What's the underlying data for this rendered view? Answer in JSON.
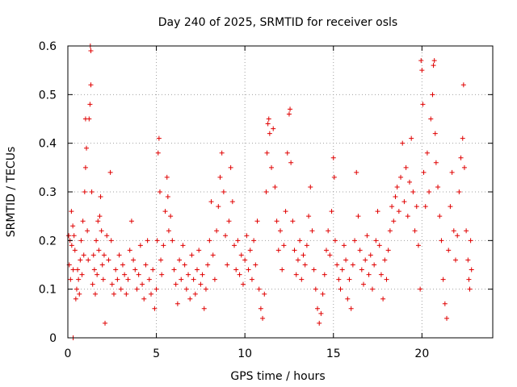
{
  "chart_data": {
    "type": "scatter",
    "title": "Day 240 of 2025, SRMTID for receiver osls",
    "xlabel": "GPS time / hours",
    "ylabel": "SRMTID / TECUs",
    "xlim": [
      0,
      24
    ],
    "ylim": [
      0,
      0.6
    ],
    "x_ticks": [
      0,
      5,
      10,
      15,
      20
    ],
    "x_tick_labels": [
      "0",
      "5",
      "10",
      "15",
      "20"
    ],
    "y_ticks": [
      0,
      0.1,
      0.2,
      0.3,
      0.4,
      0.5,
      0.6
    ],
    "y_tick_labels": [
      "0",
      "0.1",
      "0.2",
      "0.3",
      "0.4",
      "0.5",
      "0.6"
    ],
    "grid": true,
    "marker": "plus",
    "color": "#e00000",
    "series": [
      {
        "name": "SRMTID",
        "points": [
          [
            0.05,
            0.21
          ],
          [
            0.08,
            0.15
          ],
          [
            0.12,
            0.2
          ],
          [
            0.15,
            0.12
          ],
          [
            0.2,
            0.26
          ],
          [
            0.22,
            0.19
          ],
          [
            0.28,
            0.23
          ],
          [
            0.3,
            0.14
          ],
          [
            0.35,
            0.21
          ],
          [
            0.4,
            0.18
          ],
          [
            0.45,
            0.08
          ],
          [
            0.5,
            0.1
          ],
          [
            0.55,
            0.14
          ],
          [
            0.6,
            0.12
          ],
          [
            0.65,
            0.09
          ],
          [
            0.7,
            0.16
          ],
          [
            0.75,
            0.2
          ],
          [
            0.8,
            0.13
          ],
          [
            0.85,
            0.24
          ],
          [
            0.9,
            0.17
          ],
          [
            0.95,
            0.3
          ],
          [
            1.0,
            0.35
          ],
          [
            1.0,
            0.45
          ],
          [
            1.05,
            0.39
          ],
          [
            1.1,
            0.22
          ],
          [
            1.15,
            0.16
          ],
          [
            1.2,
            0.45
          ],
          [
            1.25,
            0.48
          ],
          [
            1.27,
            0.6
          ],
          [
            1.3,
            0.52
          ],
          [
            1.3,
            0.59
          ],
          [
            1.35,
            0.3
          ],
          [
            1.4,
            0.11
          ],
          [
            1.45,
            0.17
          ],
          [
            1.5,
            0.14
          ],
          [
            1.55,
            0.09
          ],
          [
            1.6,
            0.2
          ],
          [
            1.65,
            0.13
          ],
          [
            1.7,
            0.24
          ],
          [
            1.75,
            0.18
          ],
          [
            1.8,
            0.25
          ],
          [
            1.85,
            0.29
          ],
          [
            1.9,
            0.22
          ],
          [
            1.95,
            0.15
          ],
          [
            2.0,
            0.12
          ],
          [
            2.05,
            0.17
          ],
          [
            2.1,
            0.03
          ],
          [
            2.2,
            0.21
          ],
          [
            2.3,
            0.16
          ],
          [
            2.4,
            0.34
          ],
          [
            2.45,
            0.2
          ],
          [
            2.5,
            0.11
          ],
          [
            2.6,
            0.09
          ],
          [
            2.7,
            0.14
          ],
          [
            2.8,
            0.12
          ],
          [
            2.9,
            0.17
          ],
          [
            3.0,
            0.1
          ],
          [
            3.1,
            0.15
          ],
          [
            3.2,
            0.13
          ],
          [
            3.3,
            0.09
          ],
          [
            3.4,
            0.12
          ],
          [
            3.5,
            0.18
          ],
          [
            3.6,
            0.24
          ],
          [
            3.7,
            0.16
          ],
          [
            3.8,
            0.14
          ],
          [
            3.9,
            0.1
          ],
          [
            4.0,
            0.13
          ],
          [
            4.1,
            0.19
          ],
          [
            4.2,
            0.11
          ],
          [
            4.3,
            0.08
          ],
          [
            4.4,
            0.15
          ],
          [
            4.5,
            0.2
          ],
          [
            4.6,
            0.12
          ],
          [
            4.7,
            0.09
          ],
          [
            4.8,
            0.14
          ],
          [
            4.9,
            0.06
          ],
          [
            5.0,
            0.1
          ],
          [
            5.05,
            0.2
          ],
          [
            5.1,
            0.38
          ],
          [
            5.15,
            0.41
          ],
          [
            5.2,
            0.3
          ],
          [
            5.25,
            0.16
          ],
          [
            5.3,
            0.13
          ],
          [
            5.4,
            0.19
          ],
          [
            5.5,
            0.26
          ],
          [
            5.6,
            0.33
          ],
          [
            5.65,
            0.29
          ],
          [
            5.7,
            0.22
          ],
          [
            5.8,
            0.25
          ],
          [
            5.9,
            0.2
          ],
          [
            6.0,
            0.14
          ],
          [
            6.1,
            0.11
          ],
          [
            6.2,
            0.07
          ],
          [
            6.3,
            0.16
          ],
          [
            6.4,
            0.12
          ],
          [
            6.5,
            0.19
          ],
          [
            6.6,
            0.15
          ],
          [
            6.7,
            0.1
          ],
          [
            6.8,
            0.13
          ],
          [
            6.9,
            0.08
          ],
          [
            7.0,
            0.17
          ],
          [
            7.1,
            0.12
          ],
          [
            7.2,
            0.09
          ],
          [
            7.3,
            0.14
          ],
          [
            7.4,
            0.18
          ],
          [
            7.5,
            0.11
          ],
          [
            7.6,
            0.13
          ],
          [
            7.7,
            0.06
          ],
          [
            7.8,
            0.1
          ],
          [
            7.9,
            0.15
          ],
          [
            8.0,
            0.2
          ],
          [
            8.1,
            0.28
          ],
          [
            8.2,
            0.17
          ],
          [
            8.3,
            0.12
          ],
          [
            8.4,
            0.22
          ],
          [
            8.5,
            0.27
          ],
          [
            8.6,
            0.33
          ],
          [
            8.7,
            0.38
          ],
          [
            8.8,
            0.3
          ],
          [
            8.9,
            0.21
          ],
          [
            9.0,
            0.15
          ],
          [
            9.1,
            0.24
          ],
          [
            9.2,
            0.35
          ],
          [
            9.3,
            0.28
          ],
          [
            9.4,
            0.19
          ],
          [
            9.5,
            0.14
          ],
          [
            9.6,
            0.2
          ],
          [
            9.7,
            0.13
          ],
          [
            9.8,
            0.17
          ],
          [
            9.9,
            0.11
          ],
          [
            10.0,
            0.16
          ],
          [
            10.1,
            0.21
          ],
          [
            10.2,
            0.14
          ],
          [
            10.3,
            0.18
          ],
          [
            10.4,
            0.12
          ],
          [
            10.5,
            0.2
          ],
          [
            10.6,
            0.15
          ],
          [
            10.7,
            0.24
          ],
          [
            10.8,
            0.1
          ],
          [
            10.9,
            0.06
          ],
          [
            11.0,
            0.04
          ],
          [
            11.1,
            0.09
          ],
          [
            11.2,
            0.3
          ],
          [
            11.25,
            0.38
          ],
          [
            11.3,
            0.44
          ],
          [
            11.35,
            0.45
          ],
          [
            11.4,
            0.42
          ],
          [
            11.5,
            0.35
          ],
          [
            11.6,
            0.43
          ],
          [
            11.7,
            0.31
          ],
          [
            11.8,
            0.24
          ],
          [
            11.9,
            0.18
          ],
          [
            12.0,
            0.22
          ],
          [
            12.1,
            0.14
          ],
          [
            12.2,
            0.19
          ],
          [
            12.3,
            0.26
          ],
          [
            12.4,
            0.38
          ],
          [
            12.5,
            0.46
          ],
          [
            12.55,
            0.47
          ],
          [
            12.6,
            0.36
          ],
          [
            12.7,
            0.24
          ],
          [
            12.8,
            0.18
          ],
          [
            12.9,
            0.13
          ],
          [
            13.0,
            0.16
          ],
          [
            13.1,
            0.2
          ],
          [
            13.2,
            0.12
          ],
          [
            13.3,
            0.17
          ],
          [
            13.4,
            0.15
          ],
          [
            13.5,
            0.19
          ],
          [
            13.6,
            0.25
          ],
          [
            13.7,
            0.31
          ],
          [
            13.8,
            0.22
          ],
          [
            13.9,
            0.14
          ],
          [
            14.0,
            0.1
          ],
          [
            14.1,
            0.06
          ],
          [
            14.2,
            0.03
          ],
          [
            14.3,
            0.05
          ],
          [
            14.4,
            0.09
          ],
          [
            14.5,
            0.13
          ],
          [
            14.6,
            0.18
          ],
          [
            14.7,
            0.22
          ],
          [
            14.8,
            0.17
          ],
          [
            14.9,
            0.26
          ],
          [
            15.0,
            0.37
          ],
          [
            15.05,
            0.33
          ],
          [
            15.1,
            0.2
          ],
          [
            15.2,
            0.15
          ],
          [
            15.3,
            0.12
          ],
          [
            15.4,
            0.1
          ],
          [
            15.5,
            0.14
          ],
          [
            15.6,
            0.19
          ],
          [
            15.7,
            0.16
          ],
          [
            15.8,
            0.08
          ],
          [
            15.9,
            0.12
          ],
          [
            16.0,
            0.06
          ],
          [
            16.1,
            0.15
          ],
          [
            16.2,
            0.2
          ],
          [
            16.3,
            0.34
          ],
          [
            16.4,
            0.25
          ],
          [
            16.5,
            0.18
          ],
          [
            16.6,
            0.14
          ],
          [
            16.7,
            0.11
          ],
          [
            16.8,
            0.16
          ],
          [
            16.9,
            0.21
          ],
          [
            17.0,
            0.13
          ],
          [
            17.1,
            0.17
          ],
          [
            17.2,
            0.1
          ],
          [
            17.3,
            0.15
          ],
          [
            17.4,
            0.2
          ],
          [
            17.5,
            0.26
          ],
          [
            17.6,
            0.19
          ],
          [
            17.7,
            0.13
          ],
          [
            17.8,
            0.08
          ],
          [
            17.9,
            0.16
          ],
          [
            18.0,
            0.12
          ],
          [
            18.1,
            0.18
          ],
          [
            18.2,
            0.22
          ],
          [
            18.3,
            0.27
          ],
          [
            18.4,
            0.24
          ],
          [
            18.5,
            0.29
          ],
          [
            18.6,
            0.31
          ],
          [
            18.7,
            0.26
          ],
          [
            18.8,
            0.33
          ],
          [
            18.9,
            0.4
          ],
          [
            19.0,
            0.28
          ],
          [
            19.1,
            0.35
          ],
          [
            19.2,
            0.25
          ],
          [
            19.3,
            0.32
          ],
          [
            19.4,
            0.41
          ],
          [
            19.5,
            0.3
          ],
          [
            19.6,
            0.22
          ],
          [
            19.7,
            0.27
          ],
          [
            19.8,
            0.19
          ],
          [
            19.9,
            0.1
          ],
          [
            19.95,
            0.57
          ],
          [
            20.0,
            0.55
          ],
          [
            20.05,
            0.48
          ],
          [
            20.1,
            0.34
          ],
          [
            20.2,
            0.27
          ],
          [
            20.3,
            0.38
          ],
          [
            20.4,
            0.3
          ],
          [
            20.5,
            0.45
          ],
          [
            20.6,
            0.5
          ],
          [
            20.65,
            0.56
          ],
          [
            20.7,
            0.57
          ],
          [
            20.75,
            0.42
          ],
          [
            20.8,
            0.36
          ],
          [
            20.9,
            0.31
          ],
          [
            21.0,
            0.25
          ],
          [
            21.1,
            0.2
          ],
          [
            21.2,
            0.12
          ],
          [
            21.3,
            0.07
          ],
          [
            21.4,
            0.04
          ],
          [
            21.5,
            0.18
          ],
          [
            21.6,
            0.27
          ],
          [
            21.7,
            0.34
          ],
          [
            21.8,
            0.22
          ],
          [
            21.9,
            0.16
          ],
          [
            22.0,
            0.21
          ],
          [
            22.1,
            0.3
          ],
          [
            22.2,
            0.37
          ],
          [
            22.3,
            0.41
          ],
          [
            22.35,
            0.52
          ],
          [
            22.4,
            0.35
          ],
          [
            22.5,
            0.22
          ],
          [
            22.6,
            0.16
          ],
          [
            22.65,
            0.12
          ],
          [
            22.7,
            0.1
          ],
          [
            22.75,
            0.2
          ],
          [
            22.8,
            0.14
          ],
          [
            0.3,
            0.0
          ]
        ]
      }
    ]
  }
}
